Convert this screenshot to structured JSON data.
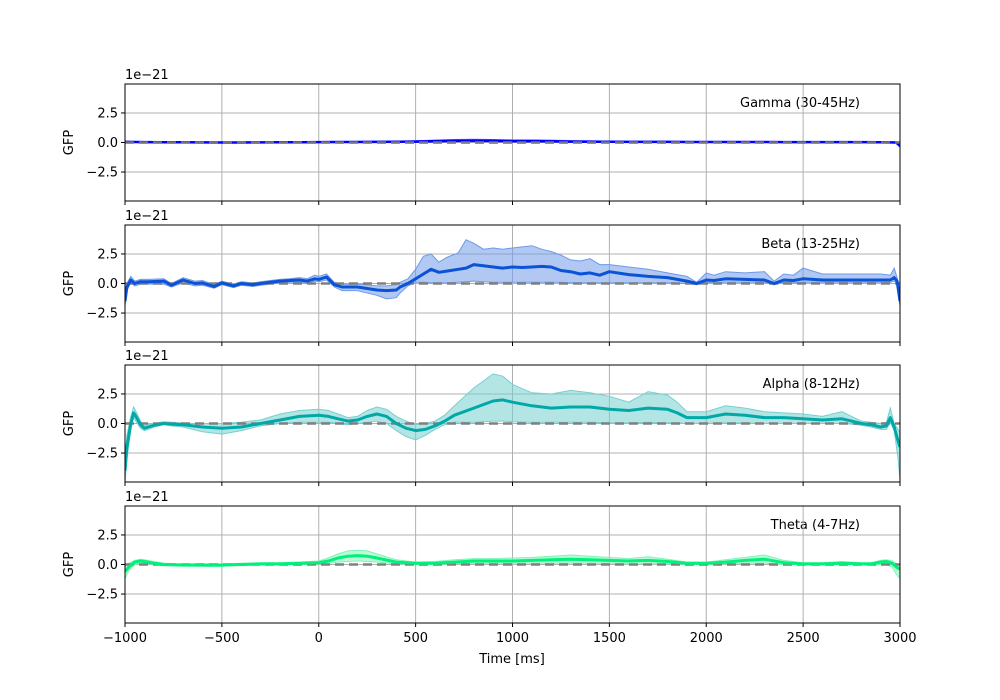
{
  "figure": {
    "xlabel": "Time [ms]",
    "ylabel": "GFP",
    "offset_text": "1e−21",
    "grid": true,
    "baseline": {
      "style": "dashed",
      "color": "#808080",
      "value": 0
    }
  },
  "chart_data": [
    {
      "type": "line",
      "title": "Gamma (30-45Hz)",
      "xlabel": "",
      "ylabel": "GFP",
      "xlim": [
        -1000,
        3000
      ],
      "ylim": [
        -4.95,
        4.95
      ],
      "y_scale": "1e-21",
      "yticks": [
        "2.5",
        "0.0",
        "−2.5"
      ],
      "xticks": [
        "-1000",
        "-500",
        "0",
        "500",
        "1000",
        "1500",
        "2000",
        "2500",
        "3000"
      ],
      "color": "#0000ff",
      "fill_color": "#6f6fff",
      "x": [
        -1000,
        -900,
        -800,
        -700,
        -600,
        -500,
        -400,
        -300,
        -200,
        -100,
        0,
        100,
        200,
        300,
        400,
        500,
        600,
        700,
        800,
        900,
        1000,
        1100,
        1200,
        1300,
        1400,
        1500,
        1600,
        1700,
        1800,
        1900,
        2000,
        2100,
        2200,
        2300,
        2400,
        2500,
        2600,
        2700,
        2800,
        2900,
        2980,
        3000
      ],
      "mean": [
        0.05,
        0.03,
        0.02,
        0.02,
        0.01,
        0.0,
        0.0,
        0.01,
        0.02,
        0.02,
        0.03,
        0.04,
        0.04,
        0.05,
        0.06,
        0.08,
        0.12,
        0.15,
        0.16,
        0.14,
        0.12,
        0.12,
        0.1,
        0.08,
        0.07,
        0.06,
        0.05,
        0.05,
        0.05,
        0.04,
        0.04,
        0.04,
        0.04,
        0.04,
        0.03,
        0.03,
        0.03,
        0.03,
        0.03,
        0.02,
        0.0,
        -0.3
      ],
      "lower": [
        0.0,
        0.0,
        0.0,
        0.0,
        0.0,
        -0.02,
        -0.02,
        0.0,
        0.0,
        0.0,
        0.0,
        0.0,
        0.0,
        0.0,
        0.0,
        0.0,
        0.02,
        0.04,
        0.05,
        0.04,
        0.03,
        0.03,
        0.02,
        0.01,
        0.0,
        0.0,
        0.0,
        0.0,
        0.0,
        0.0,
        0.0,
        0.0,
        0.0,
        0.0,
        0.0,
        0.0,
        0.0,
        0.0,
        0.0,
        0.0,
        -0.05,
        -0.4
      ],
      "upper": [
        0.1,
        0.07,
        0.05,
        0.05,
        0.04,
        0.03,
        0.03,
        0.04,
        0.05,
        0.06,
        0.07,
        0.08,
        0.09,
        0.1,
        0.12,
        0.15,
        0.2,
        0.25,
        0.27,
        0.25,
        0.22,
        0.22,
        0.2,
        0.16,
        0.14,
        0.12,
        0.1,
        0.1,
        0.1,
        0.09,
        0.08,
        0.08,
        0.08,
        0.08,
        0.07,
        0.07,
        0.07,
        0.07,
        0.07,
        0.06,
        0.05,
        -0.2
      ]
    },
    {
      "type": "line",
      "title": "Beta (13-25Hz)",
      "xlabel": "",
      "ylabel": "GFP",
      "xlim": [
        -1000,
        3000
      ],
      "ylim": [
        -4.95,
        4.95
      ],
      "y_scale": "1e-21",
      "yticks": [
        "2.5",
        "0.0",
        "−2.5"
      ],
      "xticks": [
        "-1000",
        "-500",
        "0",
        "500",
        "1000",
        "1500",
        "2000",
        "2500",
        "3000"
      ],
      "color": "#0a52d6",
      "fill_color": "#6f9ae8",
      "x": [
        -1000,
        -990,
        -970,
        -950,
        -920,
        -880,
        -800,
        -760,
        -700,
        -640,
        -600,
        -540,
        -500,
        -440,
        -400,
        -340,
        -300,
        -250,
        -200,
        -150,
        -100,
        -60,
        -20,
        0,
        40,
        80,
        120,
        200,
        300,
        350,
        400,
        420,
        460,
        500,
        540,
        580,
        620,
        660,
        720,
        760,
        800,
        850,
        900,
        950,
        1000,
        1050,
        1100,
        1150,
        1200,
        1250,
        1300,
        1350,
        1400,
        1450,
        1500,
        1600,
        1700,
        1800,
        1900,
        1950,
        2000,
        2040,
        2100,
        2200,
        2300,
        2350,
        2400,
        2450,
        2500,
        2600,
        2700,
        2800,
        2900,
        2950,
        2970,
        2985,
        3000
      ],
      "mean": [
        -1.5,
        -0.3,
        0.3,
        0.0,
        0.15,
        0.15,
        0.2,
        -0.15,
        0.3,
        0.0,
        0.05,
        -0.25,
        0.05,
        -0.2,
        0.0,
        -0.1,
        0.0,
        0.1,
        0.2,
        0.25,
        0.3,
        0.2,
        0.4,
        0.35,
        0.55,
        -0.1,
        -0.3,
        -0.3,
        -0.55,
        -0.6,
        -0.55,
        -0.3,
        0.0,
        0.4,
        0.8,
        1.2,
        0.95,
        1.05,
        1.2,
        1.3,
        1.6,
        1.5,
        1.4,
        1.3,
        1.4,
        1.35,
        1.4,
        1.45,
        1.4,
        1.1,
        1.0,
        0.8,
        0.9,
        0.7,
        1.0,
        0.75,
        0.6,
        0.5,
        0.2,
        0.0,
        0.3,
        0.25,
        0.4,
        0.35,
        0.3,
        0.0,
        0.3,
        0.25,
        0.4,
        0.3,
        0.3,
        0.3,
        0.3,
        0.3,
        0.5,
        0.2,
        -1.5
      ],
      "lower": [
        -1.9,
        -0.6,
        0.1,
        -0.2,
        -0.05,
        -0.05,
        -0.05,
        -0.3,
        0.05,
        -0.2,
        -0.15,
        -0.4,
        -0.1,
        -0.35,
        -0.15,
        -0.25,
        -0.15,
        -0.05,
        0.05,
        0.1,
        0.1,
        0.0,
        0.2,
        0.15,
        0.3,
        -0.3,
        -0.6,
        -0.6,
        -1.0,
        -1.3,
        -1.2,
        -0.8,
        -0.2,
        0.1,
        0.1,
        0.05,
        0.05,
        0.05,
        0.1,
        0.15,
        0.2,
        0.15,
        0.1,
        0.1,
        0.1,
        0.1,
        0.1,
        0.1,
        0.1,
        0.1,
        0.05,
        0.05,
        0.05,
        0.05,
        0.05,
        0.05,
        0.05,
        0.05,
        0.0,
        -0.1,
        0.1,
        0.05,
        0.1,
        0.1,
        0.1,
        -0.1,
        0.1,
        0.05,
        0.1,
        0.1,
        0.1,
        0.1,
        0.1,
        0.1,
        0.2,
        0.0,
        -1.9
      ],
      "upper": [
        -1.1,
        0.0,
        0.6,
        0.2,
        0.35,
        0.35,
        0.4,
        0.0,
        0.5,
        0.2,
        0.25,
        -0.1,
        0.2,
        -0.05,
        0.15,
        0.05,
        0.15,
        0.25,
        0.35,
        0.4,
        0.5,
        0.4,
        0.7,
        0.6,
        0.8,
        0.1,
        -0.05,
        -0.05,
        -0.2,
        -0.2,
        -0.1,
        0.1,
        0.4,
        1.2,
        2.3,
        2.5,
        1.8,
        2.2,
        2.6,
        3.7,
        3.4,
        2.9,
        3.0,
        2.9,
        3.0,
        3.1,
        3.2,
        2.9,
        2.7,
        2.4,
        2.0,
        1.9,
        2.1,
        1.6,
        1.6,
        1.4,
        1.2,
        0.9,
        0.6,
        0.1,
        0.9,
        0.7,
        1.0,
        0.9,
        1.0,
        0.2,
        0.8,
        0.7,
        1.3,
        0.8,
        0.8,
        0.8,
        0.8,
        0.7,
        1.3,
        0.5,
        -1.1
      ]
    },
    {
      "type": "line",
      "title": "Alpha (8-12Hz)",
      "xlabel": "",
      "ylabel": "GFP",
      "xlim": [
        -1000,
        3000
      ],
      "ylim": [
        -4.95,
        4.95
      ],
      "y_scale": "1e-21",
      "yticks": [
        "2.5",
        "0.0",
        "−2.5"
      ],
      "xticks": [
        "-1000",
        "-500",
        "0",
        "500",
        "1000",
        "1500",
        "2000",
        "2500",
        "3000"
      ],
      "color": "#00a8a8",
      "fill_color": "#76d0d0",
      "x": [
        -1000,
        -990,
        -970,
        -955,
        -940,
        -920,
        -900,
        -880,
        -850,
        -800,
        -760,
        -700,
        -650,
        -600,
        -500,
        -400,
        -300,
        -200,
        -100,
        0,
        50,
        100,
        150,
        200,
        250,
        300,
        350,
        400,
        450,
        500,
        550,
        600,
        650,
        700,
        800,
        900,
        950,
        1000,
        1100,
        1200,
        1300,
        1400,
        1500,
        1600,
        1700,
        1800,
        1850,
        1900,
        2000,
        2100,
        2200,
        2300,
        2400,
        2500,
        2600,
        2700,
        2750,
        2800,
        2850,
        2900,
        2930,
        2950,
        2970,
        2990,
        3000
      ],
      "mean": [
        -4.0,
        -2.0,
        0.0,
        0.9,
        0.5,
        -0.1,
        -0.4,
        -0.3,
        -0.15,
        0.0,
        -0.05,
        -0.1,
        -0.2,
        -0.3,
        -0.4,
        -0.3,
        0.0,
        0.3,
        0.6,
        0.7,
        0.6,
        0.4,
        0.2,
        0.3,
        0.6,
        0.8,
        0.6,
        0.0,
        -0.4,
        -0.6,
        -0.5,
        -0.2,
        0.2,
        0.7,
        1.3,
        1.9,
        2.0,
        1.8,
        1.5,
        1.3,
        1.4,
        1.4,
        1.2,
        1.1,
        1.3,
        1.2,
        0.9,
        0.5,
        0.5,
        0.8,
        0.7,
        0.5,
        0.5,
        0.4,
        0.3,
        0.4,
        0.2,
        0.0,
        -0.1,
        -0.3,
        -0.2,
        0.5,
        -0.3,
        -1.5,
        -2.0
      ],
      "lower": [
        -5.0,
        -3.0,
        -0.5,
        0.5,
        0.1,
        -0.4,
        -0.6,
        -0.5,
        -0.3,
        -0.1,
        -0.2,
        -0.3,
        -0.5,
        -0.7,
        -0.9,
        -0.6,
        -0.2,
        0.0,
        0.1,
        0.1,
        0.1,
        0.0,
        -0.1,
        0.0,
        0.1,
        0.2,
        0.0,
        -0.6,
        -1.1,
        -1.4,
        -1.0,
        -0.5,
        -0.1,
        0.1,
        0.1,
        0.2,
        0.2,
        0.15,
        0.1,
        0.1,
        0.1,
        0.1,
        0.05,
        0.05,
        0.1,
        0.05,
        0.05,
        0.0,
        0.0,
        0.05,
        0.05,
        0.0,
        0.0,
        0.0,
        0.0,
        0.0,
        -0.05,
        -0.15,
        -0.3,
        -0.5,
        -0.5,
        0.1,
        -0.6,
        -3.0,
        -4.8
      ],
      "upper": [
        -3.0,
        -1.0,
        0.6,
        1.4,
        0.9,
        0.2,
        -0.2,
        -0.1,
        0.0,
        0.15,
        0.1,
        0.05,
        0.0,
        0.0,
        0.0,
        0.1,
        0.3,
        0.8,
        1.1,
        1.2,
        1.1,
        0.8,
        0.5,
        0.6,
        1.1,
        1.4,
        1.2,
        0.6,
        0.2,
        -0.1,
        0.0,
        0.2,
        0.7,
        1.5,
        3.0,
        4.2,
        4.0,
        3.3,
        2.6,
        2.5,
        2.8,
        2.6,
        2.3,
        1.8,
        2.7,
        2.4,
        1.8,
        1.0,
        1.0,
        1.5,
        1.3,
        1.0,
        0.9,
        0.8,
        0.6,
        1.0,
        0.6,
        0.2,
        0.1,
        0.0,
        0.1,
        1.3,
        0.0,
        -0.5,
        -0.8
      ]
    },
    {
      "type": "line",
      "title": "Theta (4-7Hz)",
      "xlabel": "Time [ms]",
      "ylabel": "GFP",
      "xlim": [
        -1000,
        3000
      ],
      "ylim": [
        -4.95,
        4.95
      ],
      "y_scale": "1e-21",
      "yticks": [
        "2.5",
        "0.0",
        "−2.5"
      ],
      "xticks": [
        "-1000",
        "-500",
        "0",
        "500",
        "1000",
        "1500",
        "2000",
        "2500",
        "3000"
      ],
      "color": "#00f07a",
      "fill_color": "#7ff5b8",
      "x": [
        -1000,
        -980,
        -950,
        -920,
        -900,
        -850,
        -800,
        -700,
        -600,
        -500,
        -400,
        -300,
        -200,
        -100,
        0,
        50,
        100,
        150,
        200,
        250,
        300,
        400,
        500,
        600,
        700,
        800,
        900,
        1000,
        1100,
        1200,
        1300,
        1400,
        1500,
        1600,
        1700,
        1800,
        1900,
        2000,
        2100,
        2200,
        2300,
        2400,
        2500,
        2600,
        2700,
        2800,
        2850,
        2900,
        2930,
        2960,
        2980,
        3000
      ],
      "mean": [
        -0.6,
        -0.2,
        0.2,
        0.3,
        0.25,
        0.1,
        0.0,
        -0.05,
        -0.05,
        -0.05,
        0.0,
        0.05,
        0.05,
        0.1,
        0.15,
        0.3,
        0.55,
        0.7,
        0.75,
        0.7,
        0.55,
        0.2,
        0.1,
        0.1,
        0.2,
        0.3,
        0.3,
        0.3,
        0.35,
        0.4,
        0.45,
        0.4,
        0.35,
        0.3,
        0.35,
        0.25,
        0.1,
        0.1,
        0.2,
        0.35,
        0.45,
        0.15,
        0.05,
        0.05,
        0.1,
        0.05,
        0.05,
        0.2,
        0.25,
        0.1,
        -0.2,
        -0.4
      ],
      "lower": [
        -1.2,
        -0.5,
        0.0,
        0.1,
        0.1,
        0.0,
        -0.1,
        -0.1,
        -0.15,
        -0.15,
        -0.05,
        0.0,
        0.0,
        0.0,
        0.05,
        0.1,
        0.2,
        0.25,
        0.3,
        0.25,
        0.2,
        0.05,
        0.0,
        0.0,
        0.05,
        0.1,
        0.1,
        0.1,
        0.1,
        0.1,
        0.1,
        0.1,
        0.1,
        0.05,
        0.05,
        0.05,
        0.0,
        0.0,
        0.05,
        0.1,
        0.1,
        0.0,
        0.0,
        0.0,
        0.0,
        0.0,
        -0.05,
        0.0,
        0.0,
        -0.2,
        -0.8,
        -1.2
      ],
      "upper": [
        -0.2,
        0.1,
        0.35,
        0.45,
        0.4,
        0.25,
        0.1,
        0.05,
        0.05,
        0.05,
        0.1,
        0.15,
        0.15,
        0.2,
        0.3,
        0.55,
        0.9,
        1.15,
        1.2,
        1.15,
        0.9,
        0.4,
        0.2,
        0.25,
        0.4,
        0.5,
        0.5,
        0.55,
        0.6,
        0.7,
        0.8,
        0.7,
        0.6,
        0.5,
        0.65,
        0.45,
        0.2,
        0.2,
        0.4,
        0.6,
        0.8,
        0.35,
        0.15,
        0.15,
        0.25,
        0.15,
        0.15,
        0.35,
        0.4,
        0.3,
        0.1,
        0.0
      ]
    }
  ]
}
